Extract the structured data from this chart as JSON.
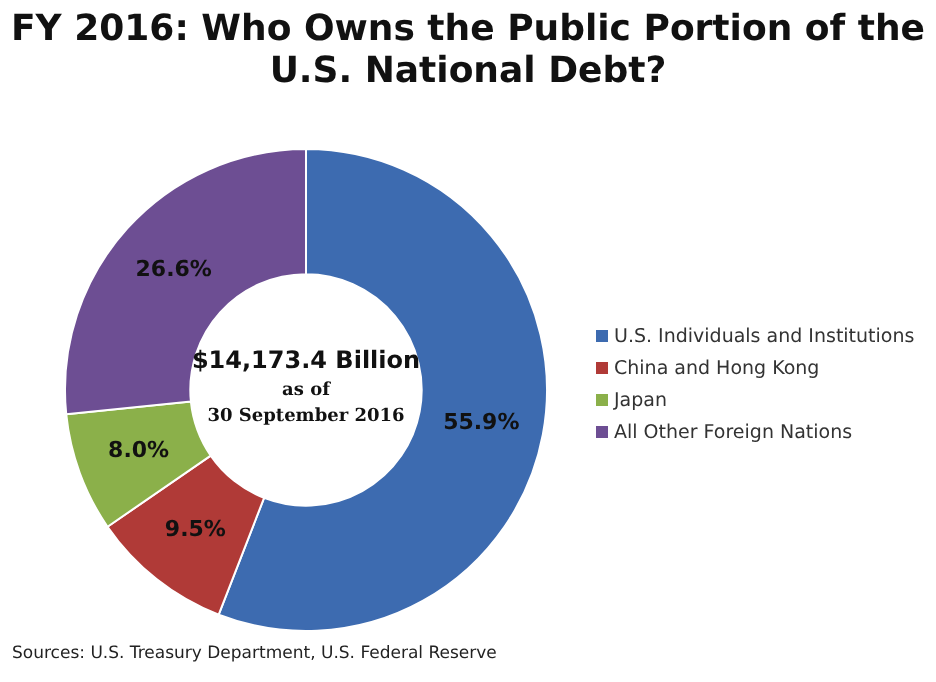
{
  "chart_data": {
    "type": "donut",
    "title": "FY 2016: Who Owns the Public Portion of the U.S. National Debt?",
    "categories": [
      "U.S. Individuals and Institutions",
      "China and Hong Kong",
      "Japan",
      "All Other Foreign Nations"
    ],
    "values": [
      55.9,
      9.5,
      8.0,
      26.6
    ],
    "colors": [
      "#3d6bb0",
      "#b03a37",
      "#8bb04a",
      "#6d4e93"
    ],
    "value_labels": [
      "55.9%",
      "9.5%",
      "8.0%",
      "26.6%"
    ],
    "legend": "right",
    "annotations": [
      "$14,173.4 Billion",
      "as of",
      "30 September 2016",
      "Sources: U.S. Treasury Department, U.S. Federal Reserve"
    ]
  }
}
